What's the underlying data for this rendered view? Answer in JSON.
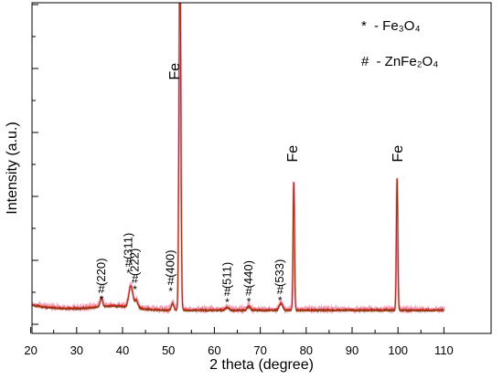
{
  "chart_data": {
    "type": "line",
    "xlabel": "2 theta (degree)",
    "ylabel": "Intensity (a.u.)",
    "xlim": [
      20,
      110
    ],
    "ylim": [
      0,
      100
    ],
    "x_ticks": [
      20,
      30,
      40,
      50,
      60,
      70,
      80,
      90,
      100,
      110
    ],
    "x_tick_labels": [
      "20",
      "30",
      "40",
      "50",
      "60",
      "70",
      "80",
      "90",
      "100",
      "110"
    ],
    "y_tick_labels_shown": false,
    "legend": {
      "placement": "top-right",
      "entries": [
        {
          "symbol": "*",
          "text": "- Fe₃O₄"
        },
        {
          "symbol": "#",
          "text": "- ZnFe₂O₄"
        }
      ]
    },
    "series": [
      {
        "color": "#d02010",
        "baseline": 4.3,
        "peaks": [
          {
            "x": 35.4,
            "height": 2.6,
            "width": 0.35
          },
          {
            "x": 41.8,
            "height": 6.5,
            "width": 0.6
          },
          {
            "x": 43.0,
            "height": 2.2,
            "width": 0.5
          },
          {
            "x": 50.9,
            "height": 2.0,
            "width": 0.4
          },
          {
            "x": 52.5,
            "height": 110,
            "width": 0.28
          },
          {
            "x": 62.8,
            "height": 0.9,
            "width": 0.5
          },
          {
            "x": 67.5,
            "height": 1.1,
            "width": 0.5
          },
          {
            "x": 74.5,
            "height": 2.1,
            "width": 0.5
          },
          {
            "x": 77.3,
            "height": 39,
            "width": 0.22
          },
          {
            "x": 99.8,
            "height": 40,
            "width": 0.22
          }
        ]
      }
    ],
    "peak_labels": [
      {
        "x": 35.4,
        "text": "(220)",
        "symbols": "#*",
        "level": 3.5
      },
      {
        "x": 41.3,
        "text": "(311)",
        "symbols": "#*",
        "level": 11.5
      },
      {
        "x": 42.7,
        "text": "(222)",
        "symbols": "#*",
        "level": 6.5
      },
      {
        "x": 50.5,
        "text": "(400)",
        "symbols": "#*",
        "level": 6.0
      },
      {
        "x": 62.8,
        "text": "(511)",
        "symbols": "#*",
        "level": 2.6
      },
      {
        "x": 67.5,
        "text": "(440)",
        "symbols": "#*",
        "level": 2.8
      },
      {
        "x": 74.3,
        "text": "(533)",
        "symbols": "#*",
        "level": 3.2
      },
      {
        "x": 51.2,
        "text": "Fe",
        "symbols": "",
        "level": 70
      },
      {
        "x": 76.9,
        "text": "Fe",
        "symbols": "",
        "level": 45
      },
      {
        "x": 99.8,
        "text": "Fe",
        "symbols": "",
        "level": 45
      }
    ]
  }
}
